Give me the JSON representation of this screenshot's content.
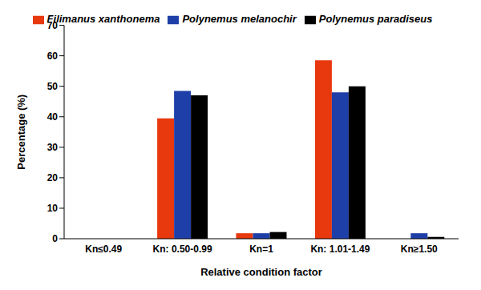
{
  "chart_data": {
    "type": "bar",
    "x_label": "Relative condition factor",
    "y_label": "Percentage (%)",
    "categories": [
      "Kn≤0.49",
      "Kn: 0.50-0.99",
      "Kn=1",
      "Kn: 1.01-1.49",
      "Kn≥1.50"
    ],
    "series": [
      {
        "name": "Filimanus xanthonema",
        "color": "#e8380d",
        "values": [
          0,
          39.5,
          1.8,
          58.5,
          0
        ]
      },
      {
        "name": "Polynemus melanochir",
        "color": "#1f3fa8",
        "values": [
          0,
          48.5,
          1.8,
          48,
          1.8
        ]
      },
      {
        "name": "Polynemus paradiseus",
        "color": "#000000",
        "values": [
          0,
          47,
          2.2,
          50,
          0.6
        ]
      }
    ],
    "ylim": [
      0,
      70
    ],
    "yticks": [
      0,
      10,
      20,
      30,
      40,
      50,
      60,
      70
    ],
    "grid": false,
    "legend": "top"
  }
}
